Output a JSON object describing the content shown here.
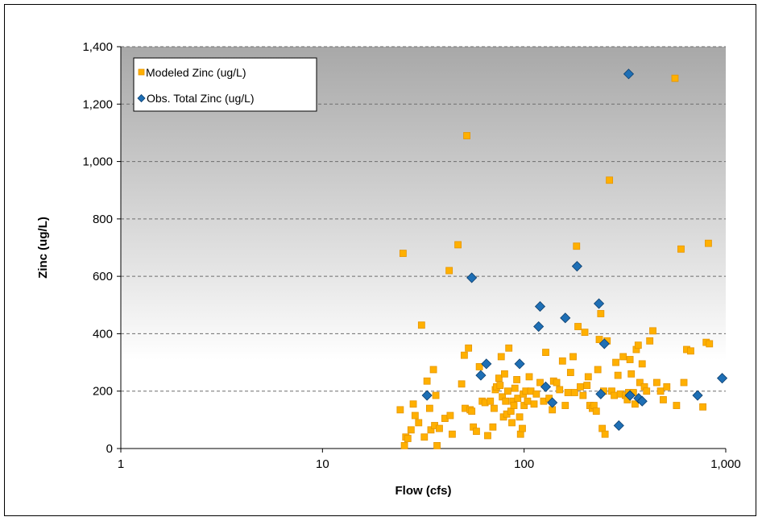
{
  "chart_data": {
    "type": "scatter",
    "xlabel": "Flow (cfs)",
    "ylabel": "Zinc (ug/L)",
    "x_scale": "log",
    "xlim": [
      1,
      1000
    ],
    "ylim": [
      0,
      1400
    ],
    "x_ticks": [
      1,
      10,
      100,
      1000
    ],
    "x_tick_labels": [
      "1",
      "10",
      "100",
      "1,000"
    ],
    "y_ticks": [
      0,
      200,
      400,
      600,
      800,
      1000,
      1200,
      1400
    ],
    "y_tick_labels": [
      "0",
      "200",
      "400",
      "600",
      "800",
      "1,000",
      "1,200",
      "1,400"
    ],
    "grid": "horizontal dashed",
    "legend_position": "top-left",
    "series": [
      {
        "name": "Modeled Zinc (ug/L)",
        "color": "#FFB000",
        "edge_color": "#E69500",
        "marker": "square",
        "points": [
          [
            24.3,
            135
          ],
          [
            25.1,
            680
          ],
          [
            25.5,
            10
          ],
          [
            25.9,
            40
          ],
          [
            26.5,
            35
          ],
          [
            27.5,
            65
          ],
          [
            28.2,
            155
          ],
          [
            28.8,
            115
          ],
          [
            30.0,
            90
          ],
          [
            31.0,
            430
          ],
          [
            32.0,
            40
          ],
          [
            33.0,
            235
          ],
          [
            34.0,
            140
          ],
          [
            34.5,
            65
          ],
          [
            35.5,
            275
          ],
          [
            36.0,
            80
          ],
          [
            36.5,
            185
          ],
          [
            37.0,
            10
          ],
          [
            38.0,
            70
          ],
          [
            40.5,
            105
          ],
          [
            42.5,
            620
          ],
          [
            43.0,
            115
          ],
          [
            44.0,
            50
          ],
          [
            47.0,
            710
          ],
          [
            49.0,
            225
          ],
          [
            50.5,
            325
          ],
          [
            51.0,
            140
          ],
          [
            52.0,
            1090
          ],
          [
            53.0,
            350
          ],
          [
            54.0,
            135
          ],
          [
            55.0,
            130
          ],
          [
            56.0,
            75
          ],
          [
            58.0,
            60
          ],
          [
            60.0,
            285
          ],
          [
            62.0,
            165
          ],
          [
            64.0,
            160
          ],
          [
            66.0,
            45
          ],
          [
            68.0,
            165
          ],
          [
            70.0,
            75
          ],
          [
            71.0,
            140
          ],
          [
            72.0,
            205
          ],
          [
            73.0,
            215
          ],
          [
            75.0,
            245
          ],
          [
            76.0,
            220
          ],
          [
            77.0,
            320
          ],
          [
            78.0,
            180
          ],
          [
            79.0,
            110
          ],
          [
            80.0,
            260
          ],
          [
            81.0,
            165
          ],
          [
            82.0,
            120
          ],
          [
            83.0,
            200
          ],
          [
            84.0,
            350
          ],
          [
            86.0,
            130
          ],
          [
            87.0,
            90
          ],
          [
            88.0,
            165
          ],
          [
            89.0,
            150
          ],
          [
            90.0,
            210
          ],
          [
            92.0,
            240
          ],
          [
            93.0,
            175
          ],
          [
            95.0,
            110
          ],
          [
            96.0,
            50
          ],
          [
            98.0,
            70
          ],
          [
            99.0,
            190
          ],
          [
            100.0,
            150
          ],
          [
            102.0,
            200
          ],
          [
            104.0,
            165
          ],
          [
            106.0,
            250
          ],
          [
            108.0,
            200
          ],
          [
            112.0,
            155
          ],
          [
            115.0,
            190
          ],
          [
            120.0,
            230
          ],
          [
            125.0,
            165
          ],
          [
            128.0,
            335
          ],
          [
            133.0,
            175
          ],
          [
            138.0,
            135
          ],
          [
            140.0,
            235
          ],
          [
            145.0,
            230
          ],
          [
            150.0,
            205
          ],
          [
            155.0,
            305
          ],
          [
            160.0,
            150
          ],
          [
            165.0,
            195
          ],
          [
            170.0,
            265
          ],
          [
            175.0,
            320
          ],
          [
            178.0,
            195
          ],
          [
            182.0,
            705
          ],
          [
            185.0,
            425
          ],
          [
            190.0,
            215
          ],
          [
            196.0,
            185
          ],
          [
            200.0,
            405
          ],
          [
            205.0,
            220
          ],
          [
            208.0,
            250
          ],
          [
            212.0,
            150
          ],
          [
            218.0,
            140
          ],
          [
            222.0,
            150
          ],
          [
            228.0,
            130
          ],
          [
            232.0,
            275
          ],
          [
            236.0,
            380
          ],
          [
            240.0,
            470
          ],
          [
            244.0,
            70
          ],
          [
            248.0,
            200
          ],
          [
            252.0,
            50
          ],
          [
            258.0,
            375
          ],
          [
            265.0,
            935
          ],
          [
            272.0,
            200
          ],
          [
            280.0,
            185
          ],
          [
            285.0,
            300
          ],
          [
            292.0,
            255
          ],
          [
            300.0,
            190
          ],
          [
            310.0,
            320
          ],
          [
            318.0,
            185
          ],
          [
            325.0,
            170
          ],
          [
            330.0,
            195
          ],
          [
            335.0,
            310
          ],
          [
            340.0,
            260
          ],
          [
            348.0,
            195
          ],
          [
            355.0,
            155
          ],
          [
            360.0,
            345
          ],
          [
            368.0,
            360
          ],
          [
            375.0,
            230
          ],
          [
            385.0,
            295
          ],
          [
            395.0,
            215
          ],
          [
            405.0,
            200
          ],
          [
            420.0,
            375
          ],
          [
            435.0,
            410
          ],
          [
            455.0,
            230
          ],
          [
            475.0,
            200
          ],
          [
            490.0,
            170
          ],
          [
            510.0,
            215
          ],
          [
            560.0,
            1290
          ],
          [
            570.0,
            150
          ],
          [
            600.0,
            695
          ],
          [
            620.0,
            230
          ],
          [
            640.0,
            345
          ],
          [
            670.0,
            340
          ],
          [
            770.0,
            145
          ],
          [
            800.0,
            370
          ],
          [
            820.0,
            715
          ],
          [
            830.0,
            365
          ]
        ]
      },
      {
        "name": "Obs. Total Zinc (ug/L)",
        "color": "#1E6FB5",
        "edge_color": "#0D3F6E",
        "marker": "diamond",
        "points": [
          [
            33.0,
            185
          ],
          [
            55.0,
            595
          ],
          [
            61.0,
            255
          ],
          [
            65.0,
            295
          ],
          [
            95.0,
            295
          ],
          [
            118.0,
            425
          ],
          [
            120.0,
            495
          ],
          [
            128.0,
            215
          ],
          [
            138.0,
            160
          ],
          [
            160.0,
            455
          ],
          [
            183.0,
            635
          ],
          [
            235.0,
            505
          ],
          [
            240.0,
            190
          ],
          [
            250.0,
            365
          ],
          [
            295.0,
            80
          ],
          [
            330.0,
            1305
          ],
          [
            335.0,
            185
          ],
          [
            370.0,
            175
          ],
          [
            385.0,
            165
          ],
          [
            725.0,
            185
          ],
          [
            960.0,
            245
          ]
        ]
      }
    ]
  }
}
